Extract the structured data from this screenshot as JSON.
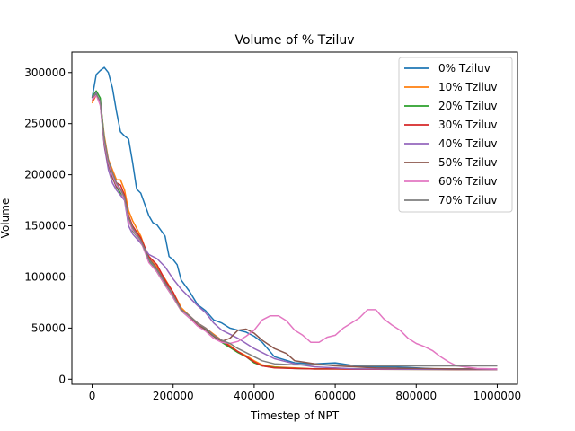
{
  "chart_data": {
    "type": "line",
    "title": "Volume of % Tziluv",
    "xlabel": "Timestep of NPT",
    "ylabel": "Volume",
    "xlim": [
      -50000,
      1050000
    ],
    "ylim": [
      -5000,
      320000
    ],
    "xticks": [
      0,
      200000,
      400000,
      600000,
      800000,
      1000000
    ],
    "yticks": [
      0,
      50000,
      100000,
      150000,
      200000,
      250000,
      300000
    ],
    "grid": false,
    "legend_position": "top-right",
    "series": [
      {
        "name": "0% Tziluv",
        "color": "#1f77b4",
        "x": [
          0,
          10000,
          20000,
          30000,
          40000,
          50000,
          60000,
          70000,
          80000,
          90000,
          100000,
          110000,
          120000,
          140000,
          150000,
          160000,
          180000,
          190000,
          200000,
          210000,
          220000,
          240000,
          260000,
          280000,
          300000,
          320000,
          340000,
          360000,
          380000,
          400000,
          420000,
          450000,
          500000,
          550000,
          600000,
          650000,
          700000,
          750000,
          800000,
          850000,
          900000,
          950000,
          1000000
        ],
        "y": [
          275000,
          298000,
          302000,
          305000,
          300000,
          285000,
          262000,
          242000,
          238000,
          235000,
          212000,
          186000,
          182000,
          160000,
          153000,
          151000,
          140000,
          120000,
          117000,
          112000,
          97000,
          86000,
          73000,
          67000,
          58000,
          55000,
          50000,
          48000,
          46000,
          42000,
          36000,
          22000,
          16000,
          15000,
          16000,
          13000,
          12000,
          12000,
          11000,
          10000,
          10000,
          10000,
          10000
        ]
      },
      {
        "name": "10% Tziluv",
        "color": "#ff7f0e",
        "x": [
          0,
          10000,
          20000,
          30000,
          40000,
          50000,
          60000,
          70000,
          80000,
          90000,
          100000,
          120000,
          140000,
          160000,
          180000,
          200000,
          220000,
          240000,
          260000,
          280000,
          300000,
          320000,
          340000,
          360000,
          380000,
          400000,
          420000,
          450000,
          500000,
          550000,
          600000,
          650000,
          700000,
          800000,
          900000,
          1000000
        ],
        "y": [
          270000,
          278000,
          272000,
          238000,
          215000,
          205000,
          195000,
          195000,
          185000,
          165000,
          155000,
          140000,
          118000,
          110000,
          98000,
          85000,
          70000,
          62000,
          55000,
          50000,
          44000,
          38000,
          33000,
          27000,
          23000,
          18000,
          14000,
          12000,
          11000,
          10000,
          10000,
          10000,
          10000,
          10000,
          9500,
          9500
        ]
      },
      {
        "name": "20% Tziluv",
        "color": "#2ca02c",
        "x": [
          0,
          10000,
          20000,
          30000,
          40000,
          50000,
          60000,
          70000,
          80000,
          90000,
          100000,
          120000,
          140000,
          160000,
          180000,
          200000,
          220000,
          240000,
          260000,
          280000,
          300000,
          320000,
          340000,
          360000,
          380000,
          400000,
          420000,
          450000,
          500000,
          550000,
          600000,
          650000,
          700000,
          800000,
          900000,
          1000000
        ],
        "y": [
          276000,
          282000,
          275000,
          235000,
          212000,
          200000,
          188000,
          182000,
          178000,
          160000,
          145000,
          135000,
          115000,
          105000,
          92000,
          80000,
          67000,
          60000,
          53000,
          48000,
          42000,
          36000,
          31000,
          26000,
          22000,
          16000,
          13000,
          11500,
          10500,
          10000,
          10000,
          10000,
          9800,
          9600,
          9500,
          9500
        ]
      },
      {
        "name": "30% Tziluv",
        "color": "#d62728",
        "x": [
          0,
          10000,
          20000,
          30000,
          40000,
          50000,
          60000,
          70000,
          80000,
          90000,
          100000,
          120000,
          140000,
          160000,
          180000,
          200000,
          220000,
          240000,
          260000,
          280000,
          300000,
          320000,
          340000,
          360000,
          380000,
          400000,
          420000,
          450000,
          500000,
          550000,
          600000,
          650000,
          700000,
          800000,
          900000,
          1000000
        ],
        "y": [
          272000,
          278000,
          270000,
          232000,
          213000,
          202000,
          192000,
          190000,
          180000,
          160000,
          150000,
          138000,
          120000,
          112000,
          97000,
          85000,
          68000,
          62000,
          55000,
          50000,
          43000,
          38000,
          32000,
          27000,
          22000,
          17000,
          13000,
          11000,
          10500,
          10000,
          10000,
          9800,
          9800,
          9600,
          9500,
          9500
        ]
      },
      {
        "name": "40% Tziluv",
        "color": "#9467bd",
        "x": [
          0,
          10000,
          20000,
          30000,
          40000,
          50000,
          60000,
          70000,
          80000,
          90000,
          100000,
          120000,
          140000,
          160000,
          180000,
          200000,
          220000,
          240000,
          260000,
          280000,
          300000,
          320000,
          340000,
          360000,
          380000,
          400000,
          420000,
          450000,
          500000,
          550000,
          600000,
          650000,
          700000,
          800000,
          900000,
          1000000
        ],
        "y": [
          275000,
          280000,
          268000,
          228000,
          205000,
          192000,
          185000,
          180000,
          175000,
          150000,
          142000,
          133000,
          122000,
          118000,
          110000,
          98000,
          88000,
          80000,
          72000,
          65000,
          55000,
          48000,
          44000,
          40000,
          35000,
          30000,
          26000,
          20000,
          15000,
          12000,
          11000,
          10000,
          10000,
          9800,
          9600,
          9500
        ]
      },
      {
        "name": "50% Tziluv",
        "color": "#8c564b",
        "x": [
          0,
          10000,
          20000,
          30000,
          40000,
          50000,
          60000,
          70000,
          80000,
          90000,
          100000,
          120000,
          140000,
          160000,
          180000,
          200000,
          220000,
          240000,
          260000,
          280000,
          300000,
          320000,
          340000,
          360000,
          380000,
          400000,
          420000,
          450000,
          480000,
          500000,
          550000,
          600000,
          650000,
          700000,
          800000,
          900000,
          1000000
        ],
        "y": [
          275000,
          278000,
          270000,
          230000,
          210000,
          197000,
          188000,
          185000,
          178000,
          158000,
          148000,
          135000,
          118000,
          108000,
          95000,
          82000,
          68000,
          62000,
          53000,
          49000,
          42000,
          37000,
          40000,
          48000,
          49000,
          45000,
          38000,
          30000,
          25000,
          18000,
          15000,
          13000,
          12000,
          11000,
          10500,
          10000,
          10000
        ]
      },
      {
        "name": "60% Tziluv",
        "color": "#e377c2",
        "x": [
          0,
          10000,
          20000,
          30000,
          40000,
          50000,
          60000,
          70000,
          80000,
          90000,
          100000,
          120000,
          140000,
          160000,
          180000,
          200000,
          220000,
          240000,
          260000,
          280000,
          300000,
          320000,
          340000,
          360000,
          380000,
          400000,
          420000,
          440000,
          460000,
          480000,
          500000,
          520000,
          540000,
          560000,
          580000,
          600000,
          620000,
          640000,
          660000,
          680000,
          700000,
          720000,
          740000,
          760000,
          780000,
          800000,
          820000,
          840000,
          860000,
          880000,
          900000,
          950000,
          1000000
        ],
        "y": [
          273000,
          278000,
          268000,
          232000,
          212000,
          200000,
          190000,
          185000,
          176000,
          155000,
          146000,
          135000,
          114000,
          105000,
          92000,
          80000,
          67000,
          60000,
          52000,
          47000,
          40000,
          36000,
          35000,
          37000,
          42000,
          48000,
          58000,
          62000,
          62000,
          57000,
          48000,
          43000,
          36000,
          36000,
          41000,
          43000,
          50000,
          55000,
          60000,
          68000,
          68000,
          59000,
          53000,
          48000,
          40000,
          35000,
          32000,
          28000,
          22000,
          17000,
          13000,
          10500,
          10000
        ]
      },
      {
        "name": "70% Tziluv",
        "color": "#7f7f7f",
        "x": [
          0,
          10000,
          20000,
          30000,
          40000,
          50000,
          60000,
          70000,
          80000,
          90000,
          100000,
          120000,
          140000,
          160000,
          180000,
          200000,
          220000,
          240000,
          260000,
          280000,
          300000,
          320000,
          340000,
          360000,
          380000,
          400000,
          420000,
          450000,
          500000,
          550000,
          600000,
          650000,
          700000,
          800000,
          900000,
          1000000
        ],
        "y": [
          276000,
          279000,
          272000,
          235000,
          214000,
          202000,
          192000,
          186000,
          178000,
          158000,
          148000,
          136000,
          117000,
          107000,
          94000,
          82000,
          68000,
          62000,
          55000,
          50000,
          43000,
          38000,
          35000,
          30000,
          26000,
          22000,
          18000,
          15000,
          14000,
          14000,
          14000,
          13500,
          13000,
          13000,
          13000,
          13000
        ]
      }
    ]
  }
}
